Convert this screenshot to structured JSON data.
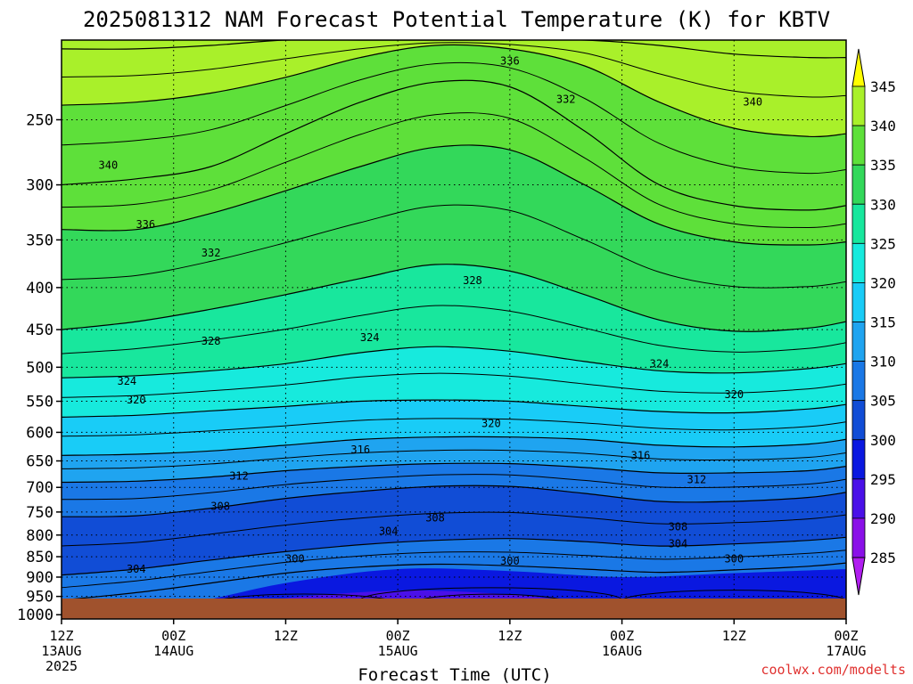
{
  "chart_data": {
    "type": "heatmap",
    "title": "2025081312 NAM Forecast Potential Temperature (K) for KBTV",
    "xlabel": "Forecast Time (UTC)",
    "x_ticks": [
      {
        "hour": 0,
        "line1": "12Z",
        "line2": "13AUG",
        "line3": "2025"
      },
      {
        "hour": 12,
        "line1": "00Z",
        "line2": "14AUG",
        "line3": ""
      },
      {
        "hour": 24,
        "line1": "12Z",
        "line2": "",
        "line3": ""
      },
      {
        "hour": 36,
        "line1": "00Z",
        "line2": "15AUG",
        "line3": ""
      },
      {
        "hour": 48,
        "line1": "12Z",
        "line2": "",
        "line3": ""
      },
      {
        "hour": 60,
        "line1": "00Z",
        "line2": "16AUG",
        "line3": ""
      },
      {
        "hour": 72,
        "line1": "12Z",
        "line2": "",
        "line3": ""
      },
      {
        "hour": 84,
        "line1": "00Z",
        "line2": "17AUG",
        "line3": ""
      }
    ],
    "y_ticks": [
      "250",
      "300",
      "350",
      "400",
      "450",
      "500",
      "550",
      "600",
      "650",
      "700",
      "750",
      "800",
      "850",
      "900",
      "950",
      "1000"
    ],
    "y_tick_values": [
      250,
      300,
      350,
      400,
      450,
      500,
      550,
      600,
      650,
      700,
      750,
      800,
      850,
      900,
      950,
      1000
    ],
    "ylim": [
      200,
      1012
    ],
    "y_scale": "log",
    "xlim": [
      0,
      84
    ],
    "grid": true,
    "colorbar": {
      "labels": [
        "345",
        "340",
        "335",
        "330",
        "325",
        "320",
        "315",
        "310",
        "305",
        "300",
        "295",
        "290",
        "285"
      ],
      "colors": [
        "#ffff00",
        "#a9f02a",
        "#5ee03a",
        "#33d85a",
        "#18e79d",
        "#17eadd",
        "#19ccf7",
        "#1fa4f0",
        "#1a78e6",
        "#114dd6",
        "#0a18e0",
        "#4a10e8",
        "#8a10e8",
        "#b01df0"
      ]
    },
    "levels": [
      {
        "theta": 300,
        "p": [
          960,
          940,
          915,
          890,
          875,
          868,
          872,
          880,
          888,
          882,
          873,
          865
        ]
      },
      {
        "theta": 304,
        "p": [
          895,
          880,
          858,
          838,
          822,
          812,
          808,
          815,
          825,
          820,
          812,
          805
        ]
      },
      {
        "theta": 308,
        "p": [
          760,
          758,
          742,
          722,
          708,
          698,
          698,
          712,
          728,
          728,
          720,
          710
        ]
      },
      {
        "theta": 312,
        "p": [
          690,
          688,
          680,
          668,
          660,
          655,
          655,
          662,
          672,
          672,
          668,
          660
        ]
      },
      {
        "theta": 316,
        "p": [
          640,
          638,
          632,
          622,
          612,
          608,
          608,
          612,
          622,
          625,
          620,
          612
        ]
      },
      {
        "theta": 320,
        "p": [
          575,
          572,
          565,
          558,
          550,
          548,
          550,
          558,
          566,
          568,
          562,
          555
        ]
      },
      {
        "theta": 324,
        "p": [
          515,
          512,
          505,
          495,
          480,
          472,
          478,
          492,
          505,
          508,
          502,
          495
        ]
      },
      {
        "theta": 328,
        "p": [
          450,
          440,
          425,
          408,
          390,
          375,
          382,
          408,
          438,
          452,
          448,
          440
        ]
      },
      {
        "theta": 332,
        "p": [
          340,
          340,
          325,
          305,
          285,
          270,
          272,
          300,
          335,
          352,
          355,
          352
        ]
      },
      {
        "theta": 336,
        "p": [
          300,
          295,
          285,
          260,
          238,
          225,
          228,
          258,
          300,
          318,
          322,
          318
        ]
      },
      {
        "theta": 340,
        "p": [
          240,
          238,
          232,
          222,
          210,
          203,
          205,
          215,
          238,
          256,
          262,
          260
        ]
      },
      {
        "theta": 345,
        "p": [
          205,
          205,
          203,
          200,
          200,
          200,
          200,
          200,
          203,
          208,
          210,
          210
        ]
      }
    ],
    "level_hours": [
      0,
      8,
      16,
      24,
      32,
      40,
      48,
      56,
      64,
      72,
      80,
      84
    ],
    "contour_labels": [
      {
        "text": "336",
        "hour": 48,
        "p": 212
      },
      {
        "text": "332",
        "hour": 54,
        "p": 236
      },
      {
        "text": "340",
        "hour": 74,
        "p": 238
      },
      {
        "text": "340",
        "hour": 5,
        "p": 284
      },
      {
        "text": "336",
        "hour": 9,
        "p": 335
      },
      {
        "text": "332",
        "hour": 16,
        "p": 363
      },
      {
        "text": "328",
        "hour": 44,
        "p": 392
      },
      {
        "text": "324",
        "hour": 33,
        "p": 460
      },
      {
        "text": "328",
        "hour": 16,
        "p": 465
      },
      {
        "text": "324",
        "hour": 64,
        "p": 495
      },
      {
        "text": "324",
        "hour": 7,
        "p": 520
      },
      {
        "text": "320",
        "hour": 8,
        "p": 548
      },
      {
        "text": "320",
        "hour": 72,
        "p": 540
      },
      {
        "text": "320",
        "hour": 46,
        "p": 585
      },
      {
        "text": "316",
        "hour": 32,
        "p": 630
      },
      {
        "text": "316",
        "hour": 62,
        "p": 640
      },
      {
        "text": "312",
        "hour": 19,
        "p": 678
      },
      {
        "text": "312",
        "hour": 68,
        "p": 685
      },
      {
        "text": "308",
        "hour": 17,
        "p": 738
      },
      {
        "text": "308",
        "hour": 40,
        "p": 762
      },
      {
        "text": "308",
        "hour": 66,
        "p": 782
      },
      {
        "text": "304",
        "hour": 35,
        "p": 792
      },
      {
        "text": "304",
        "hour": 66,
        "p": 820
      },
      {
        "text": "304",
        "hour": 8,
        "p": 880
      },
      {
        "text": "300",
        "hour": 25,
        "p": 855
      },
      {
        "text": "300",
        "hour": 48,
        "p": 860
      },
      {
        "text": "300",
        "hour": 72,
        "p": 855
      }
    ]
  },
  "credit": "coolwx.com/modelts"
}
